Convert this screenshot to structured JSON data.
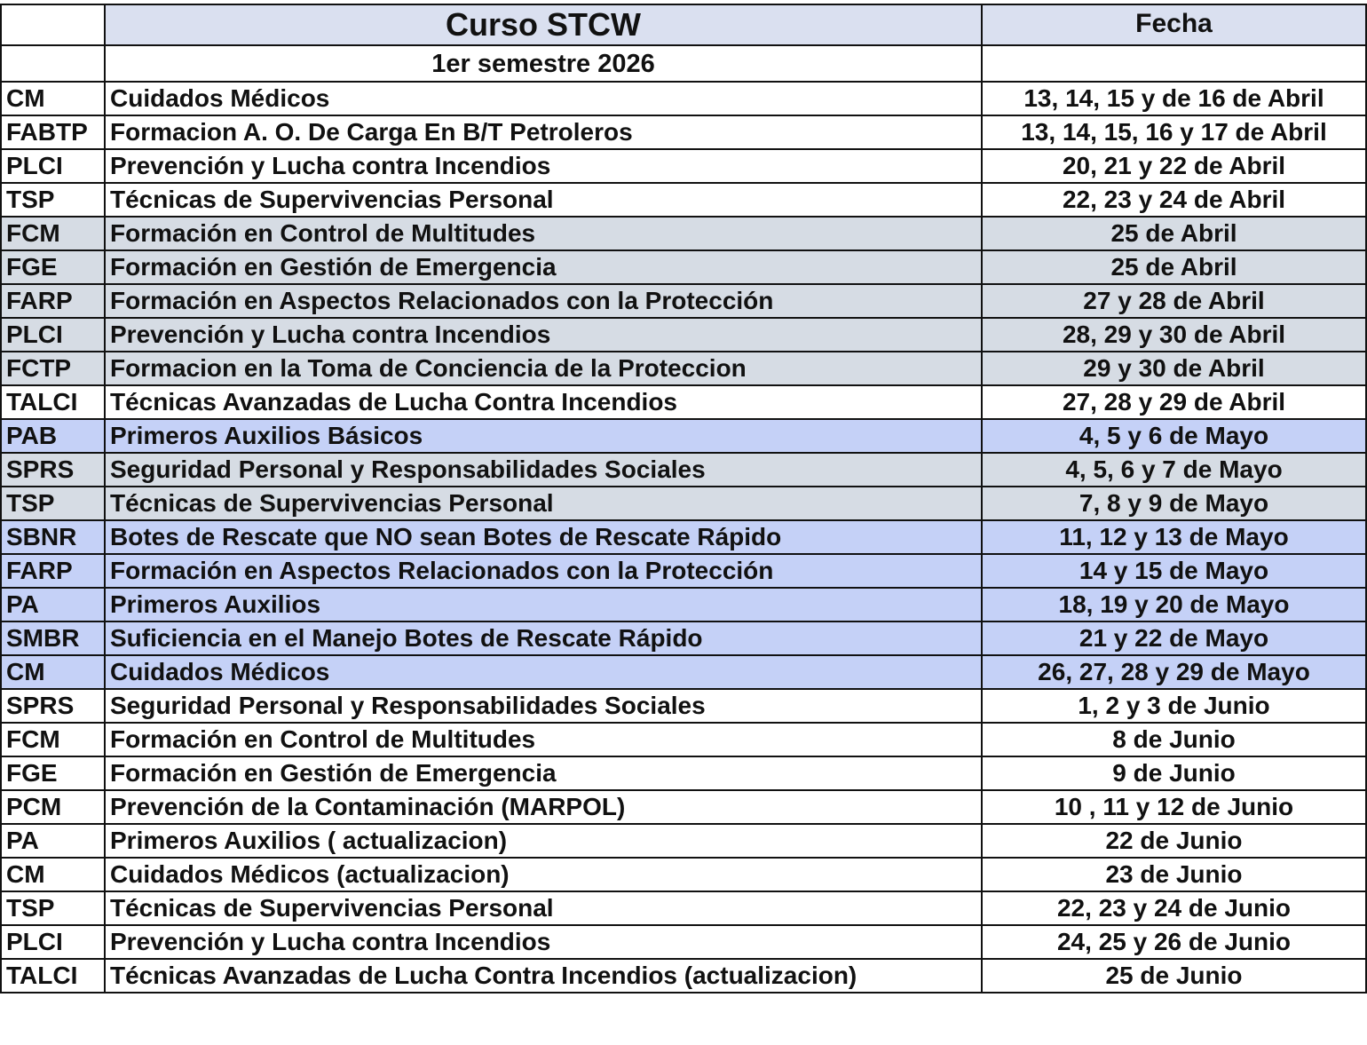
{
  "header": {
    "title": "Curso STCW",
    "date_header": "Fecha",
    "subtitle": "1er semestre 2026"
  },
  "colors": {
    "header": "#dae0f0",
    "white": "#ffffff",
    "gray": "#d6dce4",
    "blue": "#c5d1f7"
  },
  "rows": [
    {
      "code": "CM",
      "course": "Cuidados Médicos",
      "date": "13, 14, 15 y de 16 de Abril",
      "shade": "white"
    },
    {
      "code": "FABTP",
      "course": "Formacion A. O. De Carga En B/T Petroleros",
      "date": "13, 14, 15, 16 y 17 de Abril",
      "shade": "white"
    },
    {
      "code": "PLCI",
      "course": "Prevención y Lucha contra Incendios",
      "date": "20, 21 y 22 de Abril",
      "shade": "white"
    },
    {
      "code": "TSP",
      "course": "Técnicas de Supervivencias Personal",
      "date": "22, 23 y 24 de Abril",
      "shade": "white"
    },
    {
      "code": "FCM",
      "course": "Formación en Control de Multitudes",
      "date": "25 de Abril",
      "shade": "gray"
    },
    {
      "code": "FGE",
      "course": "Formación en Gestión de Emergencia",
      "date": "25 de Abril",
      "shade": "gray"
    },
    {
      "code": "FARP",
      "course": "Formación en Aspectos Relacionados con la Protección",
      "date": "27 y 28 de Abril",
      "shade": "gray"
    },
    {
      "code": "PLCI",
      "course": "Prevención y Lucha contra Incendios",
      "date": "28, 29 y 30 de Abril",
      "shade": "gray"
    },
    {
      "code": "FCTP",
      "course": "Formacion en la Toma de Conciencia de la Proteccion",
      "date": "29 y 30 de Abril",
      "shade": "gray"
    },
    {
      "code": "TALCI",
      "course": "Técnicas Avanzadas de Lucha Contra Incendios",
      "date": "27, 28 y 29 de Abril",
      "shade": "white"
    },
    {
      "code": "PAB",
      "course": "Primeros Auxilios Básicos",
      "date": "4, 5 y 6 de Mayo",
      "shade": "blue"
    },
    {
      "code": "SPRS",
      "course": "Seguridad Personal y Responsabilidades Sociales",
      "date": "4, 5, 6 y 7 de Mayo",
      "shade": "gray"
    },
    {
      "code": "TSP",
      "course": "Técnicas de Supervivencias Personal",
      "date": "7, 8 y 9 de Mayo",
      "shade": "gray"
    },
    {
      "code": "SBNR",
      "course": "Botes de Rescate que NO sean Botes de Rescate Rápido",
      "date": "11, 12 y 13 de Mayo",
      "shade": "blue"
    },
    {
      "code": "FARP",
      "course": "Formación en Aspectos Relacionados con la Protección",
      "date": "14 y 15 de Mayo",
      "shade": "blue"
    },
    {
      "code": "PA",
      "course": "Primeros Auxilios",
      "date": "18, 19 y 20 de Mayo",
      "shade": "blue"
    },
    {
      "code": "SMBR",
      "course": "Suficiencia en el Manejo Botes de Rescate Rápido",
      "date": "21 y 22 de Mayo",
      "shade": "blue"
    },
    {
      "code": "CM",
      "course": "Cuidados Médicos",
      "date": "26, 27, 28 y 29 de Mayo",
      "shade": "blue"
    },
    {
      "code": "SPRS",
      "course": "Seguridad Personal y Responsabilidades Sociales",
      "date": "1, 2 y 3 de Junio",
      "shade": "white"
    },
    {
      "code": "FCM",
      "course": "Formación en Control de Multitudes",
      "date": "8 de Junio",
      "shade": "white"
    },
    {
      "code": "FGE",
      "course": "Formación en Gestión de Emergencia",
      "date": "9 de Junio",
      "shade": "white"
    },
    {
      "code": "PCM",
      "course": "Prevención de la Contaminación (MARPOL)",
      "date": "10 , 11 y 12 de Junio",
      "shade": "white"
    },
    {
      "code": "PA",
      "course": "Primeros Auxilios ( actualizacion)",
      "date": "22 de Junio",
      "shade": "white"
    },
    {
      "code": "CM",
      "course": "Cuidados Médicos (actualizacion)",
      "date": "23 de Junio",
      "shade": "white"
    },
    {
      "code": "TSP",
      "course": "Técnicas de Supervivencias Personal",
      "date": "22, 23 y 24 de Junio",
      "shade": "white"
    },
    {
      "code": "PLCI",
      "course": "Prevención y Lucha contra Incendios",
      "date": "24, 25 y 26 de Junio",
      "shade": "white"
    },
    {
      "code": "TALCI",
      "course": "Técnicas Avanzadas de Lucha Contra Incendios (actualizacion)",
      "date": "25 de Junio",
      "shade": "white"
    }
  ]
}
